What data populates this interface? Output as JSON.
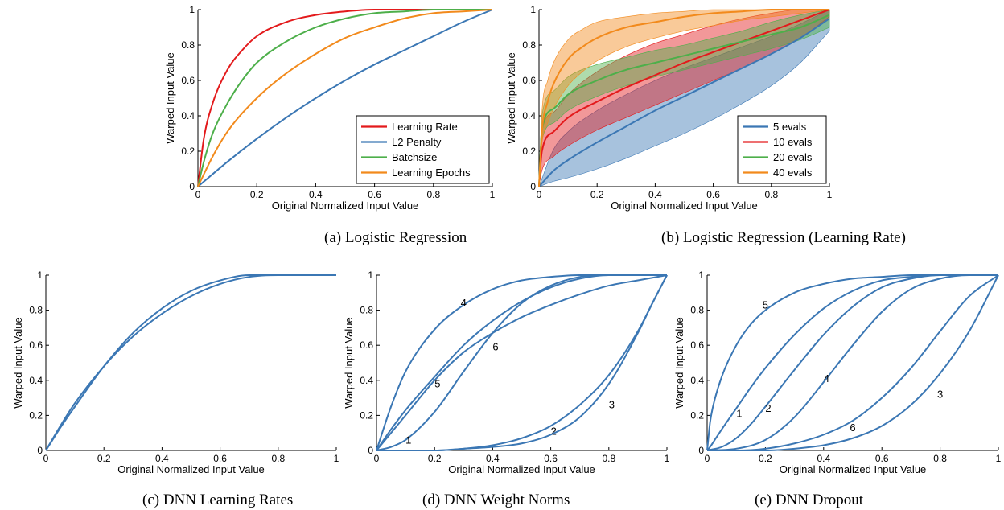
{
  "chart_data": [
    {
      "id": "a",
      "type": "line",
      "caption": "(a) Logistic Regression",
      "xlabel": "Original Normalized Input Value",
      "ylabel": "Warped Input Value",
      "xlim": [
        0,
        1
      ],
      "ylim": [
        0,
        1
      ],
      "xticks": [
        "0",
        "0.2",
        "0.4",
        "0.6",
        "0.8",
        "1"
      ],
      "yticks": [
        "0",
        "0.2",
        "0.4",
        "0.6",
        "0.8",
        "1"
      ],
      "legend_position": "bottom-right",
      "series": [
        {
          "name": "Learning Rate",
          "color": "#e31a1c",
          "x": [
            0,
            0.02,
            0.05,
            0.1,
            0.15,
            0.2,
            0.3,
            0.4,
            0.5,
            0.6,
            0.7,
            0.8,
            0.9,
            1
          ],
          "y": [
            0,
            0.27,
            0.47,
            0.66,
            0.77,
            0.85,
            0.93,
            0.97,
            0.99,
            1,
            1,
            1,
            1,
            1
          ]
        },
        {
          "name": "L2 Penalty",
          "color": "#3b77b4",
          "x": [
            0,
            0.1,
            0.2,
            0.3,
            0.4,
            0.5,
            0.6,
            0.7,
            0.8,
            0.9,
            1
          ],
          "y": [
            0,
            0.14,
            0.27,
            0.39,
            0.5,
            0.6,
            0.69,
            0.77,
            0.85,
            0.93,
            1
          ]
        },
        {
          "name": "Batchsize",
          "color": "#4daf4a",
          "x": [
            0,
            0.02,
            0.05,
            0.1,
            0.15,
            0.2,
            0.3,
            0.4,
            0.5,
            0.6,
            0.7,
            0.8,
            0.9,
            1
          ],
          "y": [
            0,
            0.14,
            0.3,
            0.47,
            0.6,
            0.7,
            0.82,
            0.9,
            0.95,
            0.98,
            0.99,
            1,
            1,
            1
          ]
        },
        {
          "name": "Learning Epochs",
          "color": "#f28a1c",
          "x": [
            0,
            0.05,
            0.1,
            0.2,
            0.3,
            0.4,
            0.5,
            0.6,
            0.7,
            0.8,
            0.9,
            1
          ],
          "y": [
            0,
            0.17,
            0.31,
            0.5,
            0.64,
            0.75,
            0.84,
            0.9,
            0.95,
            0.98,
            0.99,
            1
          ]
        }
      ]
    },
    {
      "id": "b",
      "type": "area",
      "caption": "(b) Logistic Regression (Learning Rate)",
      "xlabel": "Original Normalized Input Value",
      "ylabel": "Warped Input Value",
      "xlim": [
        0,
        1
      ],
      "ylim": [
        0,
        1
      ],
      "xticks": [
        "0",
        "0.2",
        "0.4",
        "0.6",
        "0.8",
        "1"
      ],
      "yticks": [
        "0",
        "0.2",
        "0.4",
        "0.6",
        "0.8",
        "1"
      ],
      "legend_position": "bottom-right",
      "series": [
        {
          "name": "5 evals",
          "color": "#3b77b4",
          "x": [
            0,
            0.05,
            0.1,
            0.2,
            0.3,
            0.4,
            0.5,
            0.6,
            0.7,
            0.8,
            0.9,
            1
          ],
          "mean": [
            0,
            0.09,
            0.15,
            0.25,
            0.34,
            0.43,
            0.51,
            0.59,
            0.67,
            0.75,
            0.84,
            0.95
          ],
          "lower": [
            0,
            0.03,
            0.05,
            0.1,
            0.16,
            0.23,
            0.3,
            0.38,
            0.47,
            0.57,
            0.7,
            0.88
          ],
          "upper": [
            0,
            0.21,
            0.31,
            0.43,
            0.52,
            0.6,
            0.67,
            0.73,
            0.79,
            0.85,
            0.92,
            1
          ]
        },
        {
          "name": "10 evals",
          "color": "#e31a1c",
          "x": [
            0,
            0.01,
            0.05,
            0.1,
            0.2,
            0.3,
            0.4,
            0.5,
            0.6,
            0.7,
            0.8,
            0.9,
            1
          ],
          "mean": [
            0,
            0.2,
            0.31,
            0.39,
            0.48,
            0.56,
            0.63,
            0.7,
            0.76,
            0.82,
            0.88,
            0.94,
            1
          ],
          "lower": [
            0,
            0.09,
            0.17,
            0.23,
            0.32,
            0.39,
            0.46,
            0.53,
            0.6,
            0.67,
            0.75,
            0.84,
            0.96
          ],
          "upper": [
            0,
            0.31,
            0.42,
            0.52,
            0.65,
            0.74,
            0.81,
            0.86,
            0.91,
            0.95,
            0.98,
            1,
            1
          ]
        },
        {
          "name": "20 evals",
          "color": "#4daf4a",
          "x": [
            0,
            0.01,
            0.05,
            0.1,
            0.2,
            0.3,
            0.4,
            0.5,
            0.6,
            0.7,
            0.8,
            0.9,
            1
          ],
          "mean": [
            0,
            0.32,
            0.44,
            0.52,
            0.6,
            0.66,
            0.7,
            0.74,
            0.78,
            0.82,
            0.86,
            0.9,
            0.97
          ],
          "lower": [
            0,
            0.26,
            0.36,
            0.43,
            0.51,
            0.57,
            0.62,
            0.66,
            0.7,
            0.74,
            0.78,
            0.83,
            0.9
          ],
          "upper": [
            0,
            0.4,
            0.54,
            0.62,
            0.69,
            0.73,
            0.77,
            0.8,
            0.84,
            0.88,
            0.93,
            0.97,
            1
          ]
        },
        {
          "name": "40 evals",
          "color": "#f28a1c",
          "x": [
            0,
            0.01,
            0.03,
            0.05,
            0.1,
            0.15,
            0.2,
            0.3,
            0.4,
            0.5,
            0.6,
            0.7,
            0.8,
            0.9,
            1
          ],
          "mean": [
            0,
            0.31,
            0.48,
            0.58,
            0.72,
            0.79,
            0.84,
            0.9,
            0.93,
            0.96,
            0.98,
            0.99,
            1,
            1,
            1
          ],
          "lower": [
            0,
            0.24,
            0.36,
            0.44,
            0.57,
            0.65,
            0.71,
            0.79,
            0.84,
            0.88,
            0.91,
            0.94,
            0.96,
            0.98,
            1
          ],
          "upper": [
            0,
            0.42,
            0.6,
            0.7,
            0.83,
            0.89,
            0.93,
            0.96,
            0.98,
            0.99,
            1,
            1,
            1,
            1,
            1
          ]
        }
      ]
    },
    {
      "id": "c",
      "type": "line",
      "caption": "(c) DNN Learning Rates",
      "xlabel": "Original Normalized Input Value",
      "ylabel": "Warped Input Value",
      "xlim": [
        0,
        1
      ],
      "ylim": [
        0,
        1
      ],
      "xticks": [
        "0",
        "0.2",
        "0.4",
        "0.6",
        "0.8",
        "1"
      ],
      "yticks": [
        "0",
        "0.2",
        "0.4",
        "0.6",
        "0.8",
        "1"
      ],
      "series": [
        {
          "x": [
            0,
            0.05,
            0.1,
            0.2,
            0.3,
            0.4,
            0.5,
            0.6,
            0.7,
            0.8,
            0.9,
            1
          ],
          "y": [
            0,
            0.14,
            0.27,
            0.48,
            0.65,
            0.78,
            0.88,
            0.95,
            0.99,
            1,
            1,
            1
          ]
        },
        {
          "x": [
            0,
            0.05,
            0.1,
            0.2,
            0.3,
            0.4,
            0.5,
            0.6,
            0.7,
            0.8,
            0.9,
            1
          ],
          "y": [
            0,
            0.13,
            0.25,
            0.48,
            0.67,
            0.81,
            0.91,
            0.97,
            1,
            1,
            1,
            1
          ]
        }
      ]
    },
    {
      "id": "d",
      "type": "line",
      "caption": "(d) DNN Weight Norms",
      "xlabel": "Original Normalized Input Value",
      "ylabel": "Warped Input Value",
      "xlim": [
        0,
        1
      ],
      "ylim": [
        0,
        1
      ],
      "xticks": [
        "0",
        "0.2",
        "0.4",
        "0.6",
        "0.8",
        "1"
      ],
      "yticks": [
        "0",
        "0.2",
        "0.4",
        "0.6",
        "0.8",
        "1"
      ],
      "series": [
        {
          "label": "1",
          "label_at": [
            0.11,
            0.04
          ],
          "x": [
            0,
            0.05,
            0.1,
            0.2,
            0.3,
            0.4,
            0.5,
            0.6,
            0.7,
            0.8,
            0.9,
            1
          ],
          "y": [
            0,
            0.02,
            0.06,
            0.22,
            0.45,
            0.67,
            0.84,
            0.94,
            0.99,
            1,
            1,
            1
          ]
        },
        {
          "label": "2",
          "label_at": [
            0.61,
            0.09
          ],
          "x": [
            0,
            0.2,
            0.3,
            0.4,
            0.5,
            0.6,
            0.7,
            0.8,
            0.9,
            0.95,
            1
          ],
          "y": [
            0,
            0,
            0.01,
            0.03,
            0.07,
            0.14,
            0.26,
            0.43,
            0.68,
            0.84,
            1
          ]
        },
        {
          "label": "3",
          "label_at": [
            0.81,
            0.24
          ],
          "x": [
            0,
            0.2,
            0.3,
            0.4,
            0.5,
            0.6,
            0.7,
            0.8,
            0.9,
            0.95,
            1
          ],
          "y": [
            0,
            0,
            0.01,
            0.02,
            0.04,
            0.09,
            0.19,
            0.38,
            0.67,
            0.84,
            1
          ]
        },
        {
          "label": "4",
          "label_at": [
            0.3,
            0.82
          ],
          "x": [
            0,
            0.05,
            0.1,
            0.2,
            0.3,
            0.4,
            0.5,
            0.6,
            0.7,
            0.8,
            0.9,
            1
          ],
          "y": [
            0,
            0.25,
            0.45,
            0.69,
            0.83,
            0.92,
            0.97,
            0.99,
            1,
            1,
            1,
            1
          ]
        },
        {
          "label": "5",
          "label_at": [
            0.21,
            0.36
          ],
          "x": [
            0,
            0.05,
            0.1,
            0.2,
            0.3,
            0.4,
            0.5,
            0.6,
            0.7,
            0.8,
            0.9,
            1
          ],
          "y": [
            0,
            0.12,
            0.23,
            0.42,
            0.6,
            0.74,
            0.85,
            0.93,
            0.98,
            1,
            1,
            1
          ]
        },
        {
          "label": "6",
          "label_at": [
            0.41,
            0.57
          ],
          "x": [
            0,
            0.1,
            0.2,
            0.3,
            0.4,
            0.5,
            0.6,
            0.7,
            0.8,
            0.9,
            1
          ],
          "y": [
            0,
            0.2,
            0.4,
            0.56,
            0.67,
            0.76,
            0.83,
            0.89,
            0.94,
            0.97,
            1
          ]
        }
      ]
    },
    {
      "id": "e",
      "type": "line",
      "caption": "(e) DNN Dropout",
      "xlabel": "Original Normalized Input Value",
      "ylabel": "Warped Input Value",
      "xlim": [
        0,
        1
      ],
      "ylim": [
        0,
        1
      ],
      "xticks": [
        "0",
        "0.2",
        "0.4",
        "0.6",
        "0.8",
        "1"
      ],
      "yticks": [
        "0",
        "0.2",
        "0.4",
        "0.6",
        "0.8",
        "1"
      ],
      "series": [
        {
          "label": "1",
          "label_at": [
            0.11,
            0.19
          ],
          "x": [
            0,
            0.01,
            0.03,
            0.05,
            0.1,
            0.15,
            0.2,
            0.3,
            0.4,
            0.5,
            0.6,
            0.7,
            0.8,
            0.9,
            1
          ],
          "y": [
            0,
            0.02,
            0.07,
            0.12,
            0.24,
            0.36,
            0.47,
            0.66,
            0.81,
            0.91,
            0.97,
            0.99,
            1,
            1,
            1
          ]
        },
        {
          "label": "2",
          "label_at": [
            0.21,
            0.22
          ],
          "x": [
            0,
            0.05,
            0.1,
            0.15,
            0.2,
            0.3,
            0.4,
            0.5,
            0.6,
            0.7,
            0.8,
            0.9,
            1
          ],
          "y": [
            0,
            0.02,
            0.07,
            0.15,
            0.25,
            0.46,
            0.66,
            0.82,
            0.93,
            0.98,
            1,
            1,
            1
          ]
        },
        {
          "label": "3",
          "label_at": [
            0.8,
            0.3
          ],
          "x": [
            0,
            0.1,
            0.2,
            0.3,
            0.4,
            0.5,
            0.6,
            0.7,
            0.8,
            0.9,
            1
          ],
          "y": [
            0,
            0,
            0,
            0.01,
            0.03,
            0.07,
            0.14,
            0.26,
            0.44,
            0.68,
            1
          ]
        },
        {
          "label": "4",
          "label_at": [
            0.41,
            0.39
          ],
          "x": [
            0,
            0.1,
            0.2,
            0.3,
            0.4,
            0.5,
            0.6,
            0.7,
            0.8,
            0.9,
            1
          ],
          "y": [
            0,
            0.01,
            0.06,
            0.19,
            0.39,
            0.6,
            0.79,
            0.92,
            0.98,
            1,
            1
          ]
        },
        {
          "label": "5",
          "label_at": [
            0.2,
            0.81
          ],
          "x": [
            0,
            0.01,
            0.02,
            0.05,
            0.1,
            0.15,
            0.2,
            0.3,
            0.4,
            0.5,
            0.6,
            0.7,
            0.8,
            0.9,
            1
          ],
          "y": [
            0,
            0.16,
            0.25,
            0.42,
            0.6,
            0.72,
            0.8,
            0.9,
            0.95,
            0.98,
            0.99,
            1,
            1,
            1,
            1
          ]
        },
        {
          "label": "6",
          "label_at": [
            0.5,
            0.11
          ],
          "x": [
            0,
            0.1,
            0.2,
            0.3,
            0.4,
            0.5,
            0.6,
            0.7,
            0.8,
            0.9,
            1
          ],
          "y": [
            0,
            0,
            0.01,
            0.04,
            0.09,
            0.17,
            0.3,
            0.47,
            0.68,
            0.88,
            1
          ]
        }
      ]
    }
  ]
}
